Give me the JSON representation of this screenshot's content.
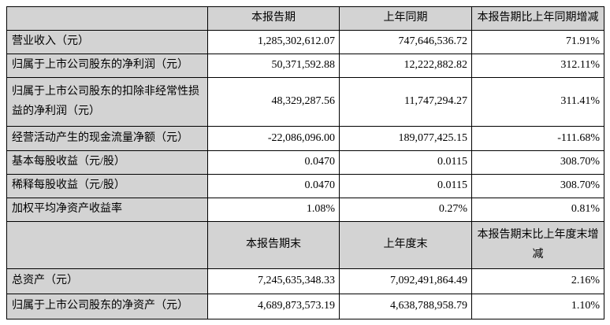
{
  "table": {
    "header1": {
      "current": "本报告期",
      "prior": "上年同期",
      "change": "本报告期比上年同期增减"
    },
    "rows1": [
      {
        "label": "营业收入（元）",
        "current": "1,285,302,612.07",
        "prior": "747,646,536.72",
        "change": "71.91%"
      },
      {
        "label": "归属于上市公司股东的净利润（元）",
        "current": "50,371,592.88",
        "prior": "12,222,882.82",
        "change": "312.11%"
      },
      {
        "label": "归属于上市公司股东的扣除非经常性损益的净利润（元）",
        "current": "48,329,287.56",
        "prior": "11,747,294.27",
        "change": "311.41%"
      },
      {
        "label": "经营活动产生的现金流量净额（元）",
        "current": "-22,086,096.00",
        "prior": "189,077,425.15",
        "change": "-111.68%"
      },
      {
        "label": "基本每股收益（元/股）",
        "current": "0.0470",
        "prior": "0.0115",
        "change": "308.70%"
      },
      {
        "label": "稀释每股收益（元/股）",
        "current": "0.0470",
        "prior": "0.0115",
        "change": "308.70%"
      },
      {
        "label": "加权平均净资产收益率",
        "current": "1.08%",
        "prior": "0.27%",
        "change": "0.81%"
      }
    ],
    "header2": {
      "current": "本报告期末",
      "prior": "上年度末",
      "change": "本报告期末比上年度末增减"
    },
    "rows2": [
      {
        "label": "总资产（元）",
        "current": "7,245,635,348.33",
        "prior": "7,092,491,864.49",
        "change": "2.16%"
      },
      {
        "label": "归属于上市公司股东的净资产（元）",
        "current": "4,689,873,573.19",
        "prior": "4,638,788,958.79",
        "change": "1.10%"
      }
    ],
    "colors": {
      "header_bg": "#d3d3d3",
      "label_bg": "#d3d3d3",
      "border": "#000000"
    }
  }
}
